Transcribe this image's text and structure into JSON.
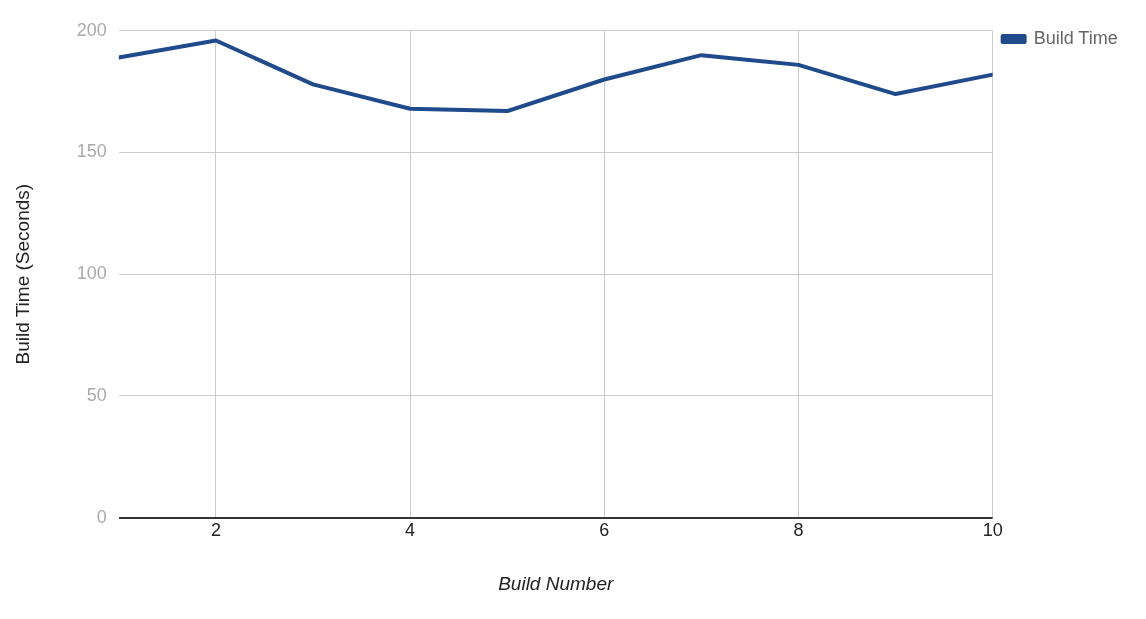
{
  "chart_data": {
    "type": "line",
    "xlabel": "Build Number",
    "ylabel": "Build Time (Seconds)",
    "x": [
      1,
      2,
      3,
      4,
      5,
      6,
      7,
      8,
      9,
      10
    ],
    "series": [
      {
        "name": "Build Time",
        "color": "#1f4a8c",
        "values": [
          189,
          196,
          178,
          168,
          167,
          180,
          190,
          186,
          174,
          182
        ]
      }
    ],
    "xlim": [
      1,
      10
    ],
    "xticks": [
      2,
      4,
      6,
      8,
      10
    ],
    "ylim": [
      0,
      200
    ],
    "yticks": [
      0,
      50,
      100,
      150,
      200
    ],
    "grid": true,
    "legend": "top right",
    "marker": "none",
    "line_style": "solid"
  }
}
